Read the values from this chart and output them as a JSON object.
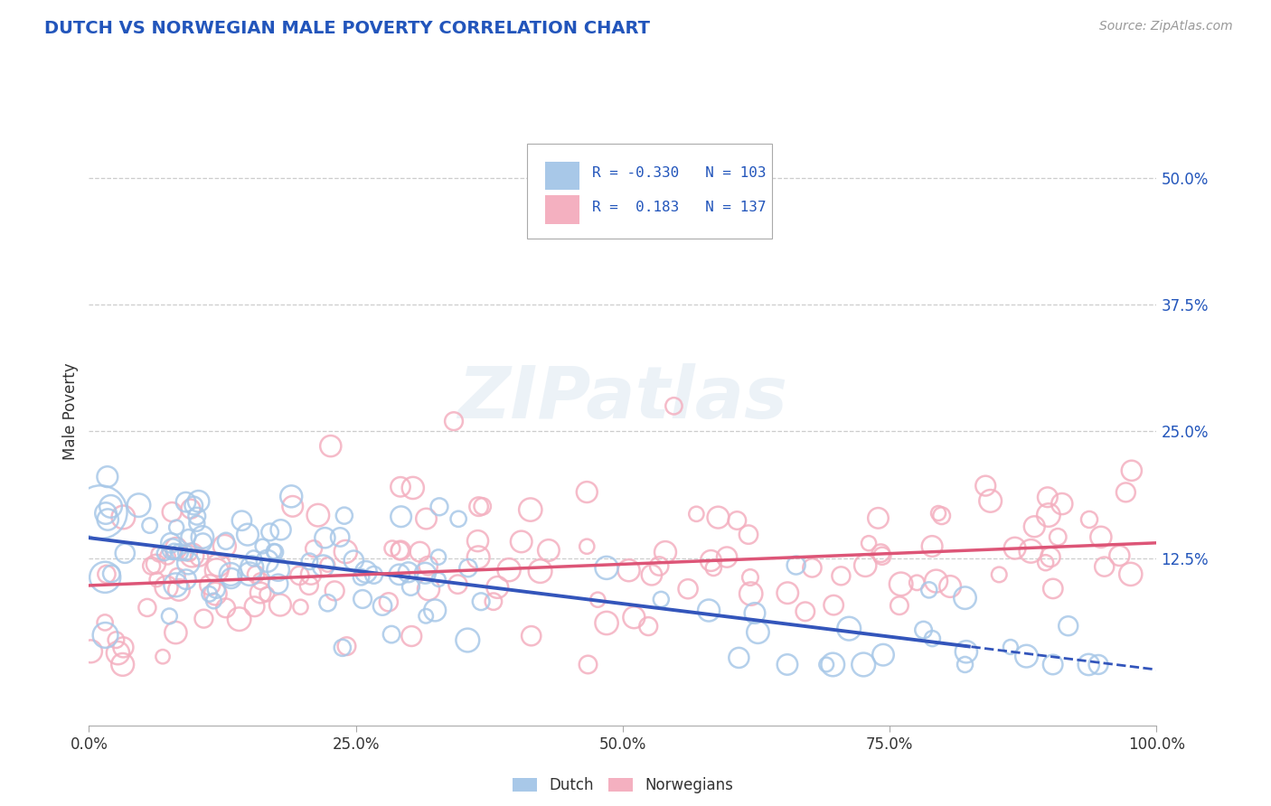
{
  "title": "DUTCH VS NORWEGIAN MALE POVERTY CORRELATION CHART",
  "source": "Source: ZipAtlas.com",
  "ylabel": "Male Poverty",
  "xlim": [
    0.0,
    1.0
  ],
  "ylim": [
    -0.04,
    0.58
  ],
  "x_ticks": [
    0.0,
    0.25,
    0.5,
    0.75,
    1.0
  ],
  "x_tick_labels": [
    "0.0%",
    "25.0%",
    "50.0%",
    "75.0%",
    "100.0%"
  ],
  "y_ticks": [
    0.125,
    0.25,
    0.375,
    0.5
  ],
  "y_tick_labels": [
    "12.5%",
    "25.0%",
    "37.5%",
    "50.0%"
  ],
  "dutch_R": -0.33,
  "dutch_N": 103,
  "norwegian_R": 0.183,
  "norwegian_N": 137,
  "dutch_color": "#a8c8e8",
  "norwegian_color": "#f4b0c0",
  "dutch_line_color": "#3355bb",
  "norwegian_line_color": "#dd5577",
  "dutch_intercept": 0.145,
  "dutch_slope": -0.13,
  "norwegian_intercept": 0.098,
  "norwegian_slope": 0.042,
  "watermark": "ZIPatlas",
  "background_color": "#ffffff",
  "grid_color": "#c8c8c8",
  "title_color": "#2255bb",
  "axis_label_color": "#2255bb",
  "text_color": "#333333"
}
